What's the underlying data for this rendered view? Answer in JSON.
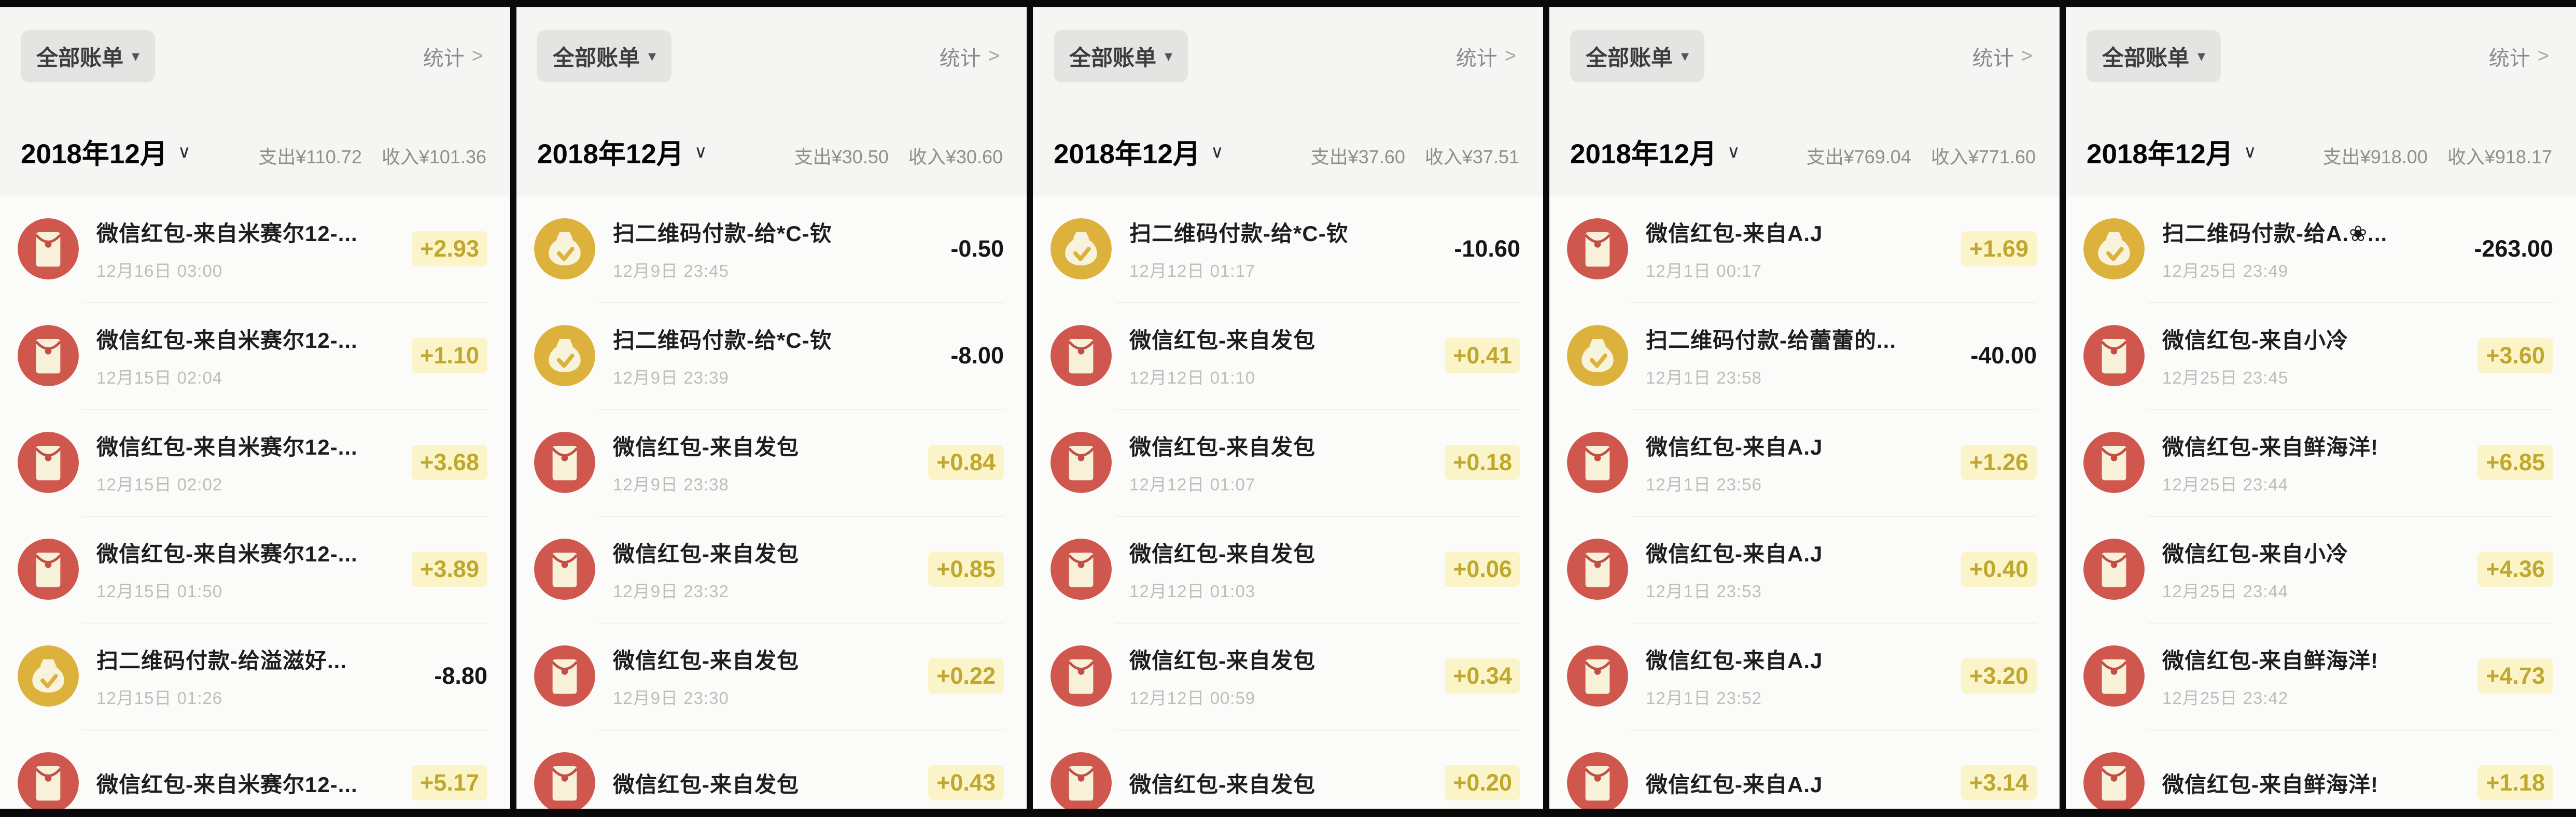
{
  "chrome": {
    "filter_label": "全部账单",
    "filter_caret": "▾",
    "stats_label": "统计",
    "stats_arrow": ">",
    "month_caret": "∨"
  },
  "colors": {
    "icon_red": "#d0574d",
    "icon_yellow": "#ddb23c",
    "income_text": "#bfa82d",
    "income_badge_bg": "#faf4c8",
    "expense_text": "#161616"
  },
  "panels": [
    {
      "month": "2018年12月",
      "expense": "支出¥110.72",
      "income": "收入¥101.36",
      "rows": [
        {
          "icon": "red-envelope",
          "title": "微信红包-来自米赛尔12-...",
          "date": "12月16日 03:00",
          "amount": "+2.93",
          "kind": "income"
        },
        {
          "icon": "red-envelope",
          "title": "微信红包-来自米赛尔12-...",
          "date": "12月15日 02:04",
          "amount": "+1.10",
          "kind": "income"
        },
        {
          "icon": "red-envelope",
          "title": "微信红包-来自米赛尔12-...",
          "date": "12月15日 02:02",
          "amount": "+3.68",
          "kind": "income"
        },
        {
          "icon": "red-envelope",
          "title": "微信红包-来自米赛尔12-...",
          "date": "12月15日 01:50",
          "amount": "+3.89",
          "kind": "income"
        },
        {
          "icon": "money-bag",
          "title": "扫二维码付款-给溢滋好...",
          "date": "12月15日 01:26",
          "amount": "-8.80",
          "kind": "expense"
        },
        {
          "icon": "red-envelope",
          "title": "微信红包-来自米赛尔12-...",
          "date": "",
          "amount": "+5.17",
          "kind": "income"
        }
      ]
    },
    {
      "month": "2018年12月",
      "expense": "支出¥30.50",
      "income": "收入¥30.60",
      "rows": [
        {
          "icon": "money-bag",
          "title": "扫二维码付款-给*C-钦",
          "date": "12月9日 23:45",
          "amount": "-0.50",
          "kind": "expense"
        },
        {
          "icon": "money-bag",
          "title": "扫二维码付款-给*C-钦",
          "date": "12月9日 23:39",
          "amount": "-8.00",
          "kind": "expense"
        },
        {
          "icon": "red-envelope",
          "title": "微信红包-来自发包",
          "date": "12月9日 23:38",
          "amount": "+0.84",
          "kind": "income"
        },
        {
          "icon": "red-envelope",
          "title": "微信红包-来自发包",
          "date": "12月9日 23:32",
          "amount": "+0.85",
          "kind": "income"
        },
        {
          "icon": "red-envelope",
          "title": "微信红包-来自发包",
          "date": "12月9日 23:30",
          "amount": "+0.22",
          "kind": "income"
        },
        {
          "icon": "red-envelope",
          "title": "微信红包-来自发包",
          "date": "",
          "amount": "+0.43",
          "kind": "income"
        }
      ]
    },
    {
      "month": "2018年12月",
      "expense": "支出¥37.60",
      "income": "收入¥37.51",
      "rows": [
        {
          "icon": "money-bag",
          "title": "扫二维码付款-给*C-钦",
          "date": "12月12日 01:17",
          "amount": "-10.60",
          "kind": "expense"
        },
        {
          "icon": "red-envelope",
          "title": "微信红包-来自发包",
          "date": "12月12日 01:10",
          "amount": "+0.41",
          "kind": "income"
        },
        {
          "icon": "red-envelope",
          "title": "微信红包-来自发包",
          "date": "12月12日 01:07",
          "amount": "+0.18",
          "kind": "income"
        },
        {
          "icon": "red-envelope",
          "title": "微信红包-来自发包",
          "date": "12月12日 01:03",
          "amount": "+0.06",
          "kind": "income"
        },
        {
          "icon": "red-envelope",
          "title": "微信红包-来自发包",
          "date": "12月12日 00:59",
          "amount": "+0.34",
          "kind": "income"
        },
        {
          "icon": "red-envelope",
          "title": "微信红包-来自发包",
          "date": "",
          "amount": "+0.20",
          "kind": "income"
        }
      ]
    },
    {
      "month": "2018年12月",
      "expense": "支出¥769.04",
      "income": "收入¥771.60",
      "rows": [
        {
          "icon": "red-envelope",
          "title": "微信红包-来自A.J",
          "date": "12月1日 00:17",
          "amount": "+1.69",
          "kind": "income"
        },
        {
          "icon": "money-bag",
          "title": "扫二维码付款-给蕾蕾的...",
          "date": "12月1日 23:58",
          "amount": "-40.00",
          "kind": "expense"
        },
        {
          "icon": "red-envelope",
          "title": "微信红包-来自A.J",
          "date": "12月1日 23:56",
          "amount": "+1.26",
          "kind": "income"
        },
        {
          "icon": "red-envelope",
          "title": "微信红包-来自A.J",
          "date": "12月1日 23:53",
          "amount": "+0.40",
          "kind": "income"
        },
        {
          "icon": "red-envelope",
          "title": "微信红包-来自A.J",
          "date": "12月1日 23:52",
          "amount": "+3.20",
          "kind": "income"
        },
        {
          "icon": "red-envelope",
          "title": "微信红包-来自A.J",
          "date": "",
          "amount": "+3.14",
          "kind": "income"
        }
      ]
    },
    {
      "month": "2018年12月",
      "expense": "支出¥918.00",
      "income": "收入¥918.17",
      "rows": [
        {
          "icon": "money-bag",
          "title": "扫二维码付款-给A.❀...",
          "date": "12月25日 23:49",
          "amount": "-263.00",
          "kind": "expense"
        },
        {
          "icon": "red-envelope",
          "title": "微信红包-来自小冷",
          "date": "12月25日 23:45",
          "amount": "+3.60",
          "kind": "income"
        },
        {
          "icon": "red-envelope",
          "title": "微信红包-来自鲜海洋!",
          "date": "12月25日 23:44",
          "amount": "+6.85",
          "kind": "income"
        },
        {
          "icon": "red-envelope",
          "title": "微信红包-来自小冷",
          "date": "12月25日 23:44",
          "amount": "+4.36",
          "kind": "income"
        },
        {
          "icon": "red-envelope",
          "title": "微信红包-来自鲜海洋!",
          "date": "12月25日 23:42",
          "amount": "+4.73",
          "kind": "income"
        },
        {
          "icon": "red-envelope",
          "title": "微信红包-来自鲜海洋!",
          "date": "",
          "amount": "+1.18",
          "kind": "income"
        }
      ]
    }
  ]
}
